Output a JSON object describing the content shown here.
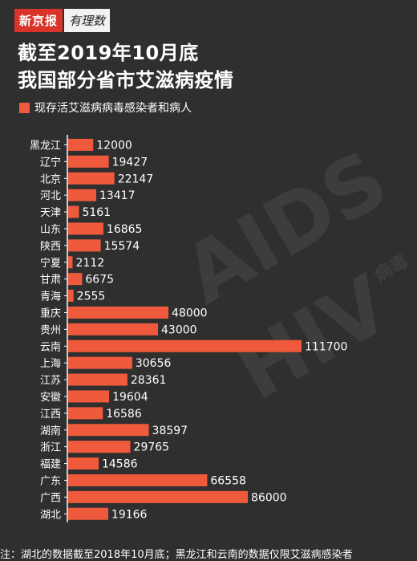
{
  "logo": {
    "brand": "新京报",
    "column": "有理数"
  },
  "title_line1": "截至2019年10月底",
  "title_line2": "我国部分省市艾滋病疫情",
  "watermark": {
    "main1": "AIDS",
    "main2": "HIV",
    "small": "病毒"
  },
  "footnote": "注：湖北的数据截至2018年10月底；黑龙江和云南的数据仅限艾滋病感染者",
  "colors": {
    "bar": "#f05a3c",
    "background": "#2f2f2f",
    "axis": "#ffffff"
  },
  "chart_data": {
    "type": "bar",
    "orientation": "horizontal",
    "legend": "现存活艾滋病病毒感染者和病人",
    "categories": [
      "黑龙江",
      "辽宁",
      "北京",
      "河北",
      "天津",
      "山东",
      "陕西",
      "宁夏",
      "甘肃",
      "青海",
      "重庆",
      "贵州",
      "云南",
      "上海",
      "江苏",
      "安徽",
      "江西",
      "湖南",
      "浙江",
      "福建",
      "广东",
      "广西",
      "湖北"
    ],
    "values": [
      12000,
      19427,
      22147,
      13417,
      5161,
      16865,
      15574,
      2112,
      6675,
      2555,
      48000,
      43000,
      111700,
      30656,
      28361,
      19604,
      16586,
      38597,
      29765,
      14586,
      66558,
      86000,
      19166
    ],
    "value_labels": [
      "12000",
      "19427",
      "22147",
      "13417",
      "5161",
      "16865",
      "15574",
      "2112",
      "6675",
      "2555",
      "48000",
      "43000",
      "111700",
      "30656",
      "28361",
      "19604",
      "16586",
      "38597",
      "29765",
      "14586",
      "66558",
      "86000",
      "19166"
    ],
    "xlim": [
      0,
      111700
    ],
    "grid": false
  }
}
